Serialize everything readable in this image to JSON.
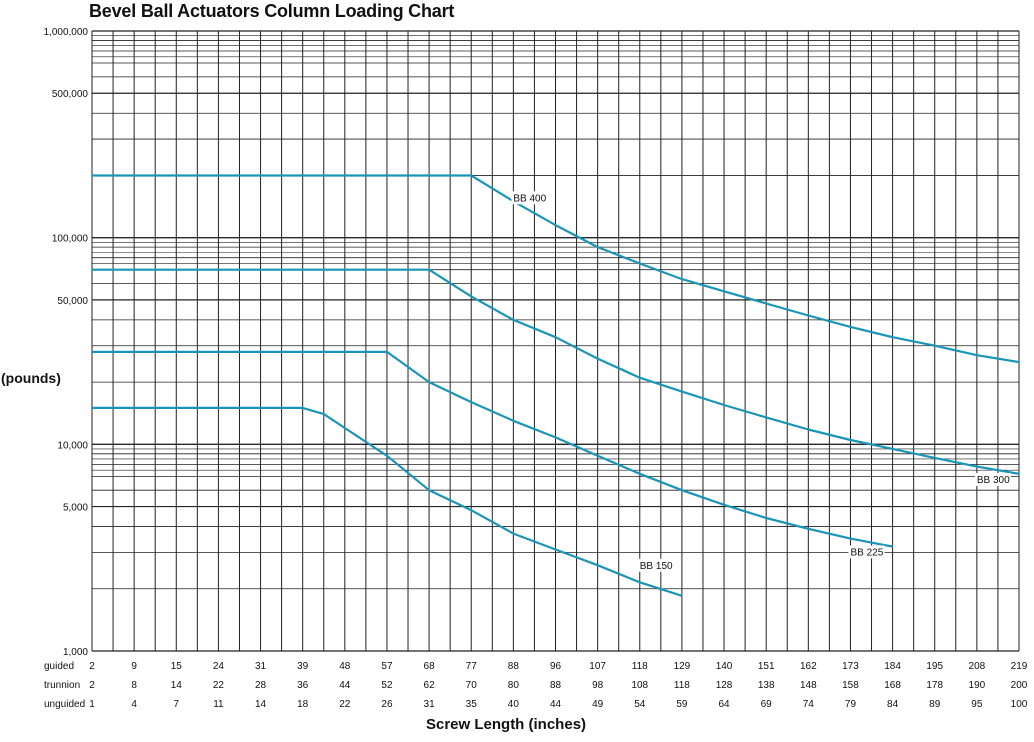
{
  "chart_data": {
    "type": "line",
    "title": "Bevel Ball Actuators Column Loading Chart",
    "ylabel": "(pounds)",
    "xlabel": "Screw Length (inches)",
    "yscale": "log",
    "ylim": [
      1000,
      1000000
    ],
    "ytick_labels": [
      "1,000,000",
      "500,000",
      "100,000",
      "50,000",
      "10,000",
      "5,000",
      "1,000"
    ],
    "ytick_values": [
      1000000,
      500000,
      100000,
      50000,
      10000,
      5000,
      1000
    ],
    "grid": true,
    "x_rows": [
      {
        "name": "guided",
        "labels": [
          "2",
          "9",
          "15",
          "24",
          "31",
          "39",
          "48",
          "57",
          "68",
          "77",
          "88",
          "96",
          "107",
          "118",
          "129",
          "140",
          "151",
          "162",
          "173",
          "184",
          "195",
          "208",
          "219"
        ]
      },
      {
        "name": "trunnion",
        "labels": [
          "2",
          "8",
          "14",
          "22",
          "28",
          "36",
          "44",
          "52",
          "62",
          "70",
          "80",
          "88",
          "98",
          "108",
          "118",
          "128",
          "138",
          "148",
          "158",
          "168",
          "178",
          "190",
          "200"
        ]
      },
      {
        "name": "unguided",
        "labels": [
          "1",
          "4",
          "7",
          "11",
          "14",
          "18",
          "22",
          "26",
          "31",
          "35",
          "40",
          "44",
          "49",
          "54",
          "59",
          "64",
          "69",
          "74",
          "79",
          "84",
          "89",
          "95",
          "100"
        ]
      }
    ],
    "x_reference_row": "unguided",
    "series": [
      {
        "name": "BB 400",
        "color": "#1a95b8",
        "points": [
          [
            1,
            200000
          ],
          [
            35,
            200000
          ],
          [
            40,
            150000
          ],
          [
            44,
            115000
          ],
          [
            49,
            90000
          ],
          [
            54,
            75000
          ],
          [
            59,
            63000
          ],
          [
            64,
            55000
          ],
          [
            69,
            48000
          ],
          [
            74,
            42000
          ],
          [
            79,
            37000
          ],
          [
            84,
            33000
          ],
          [
            89,
            30000
          ],
          [
            95,
            27000
          ],
          [
            100,
            25000
          ]
        ]
      },
      {
        "name": "BB 300",
        "color": "#1a95b8",
        "points": [
          [
            1,
            70000
          ],
          [
            31,
            70000
          ],
          [
            35,
            52000
          ],
          [
            40,
            40000
          ],
          [
            44,
            33000
          ],
          [
            49,
            26000
          ],
          [
            54,
            21000
          ],
          [
            59,
            18000
          ],
          [
            64,
            15500
          ],
          [
            69,
            13500
          ],
          [
            74,
            11800
          ],
          [
            79,
            10500
          ],
          [
            84,
            9500
          ],
          [
            89,
            8600
          ],
          [
            95,
            7800
          ],
          [
            100,
            7200
          ]
        ]
      },
      {
        "name": "BB 225",
        "color": "#1a95b8",
        "points": [
          [
            1,
            28000
          ],
          [
            26,
            28000
          ],
          [
            31,
            20000
          ],
          [
            35,
            16000
          ],
          [
            40,
            13000
          ],
          [
            44,
            10800
          ],
          [
            49,
            8800
          ],
          [
            54,
            7200
          ],
          [
            59,
            6000
          ],
          [
            64,
            5100
          ],
          [
            69,
            4400
          ],
          [
            74,
            3900
          ],
          [
            79,
            3500
          ],
          [
            84,
            3200
          ]
        ]
      },
      {
        "name": "BB 150",
        "color": "#1a95b8",
        "points": [
          [
            1,
            15000
          ],
          [
            18,
            15000
          ],
          [
            20,
            14000
          ],
          [
            22,
            12000
          ],
          [
            26,
            8800
          ],
          [
            31,
            6000
          ],
          [
            35,
            4800
          ],
          [
            40,
            3700
          ],
          [
            44,
            3100
          ],
          [
            49,
            2600
          ],
          [
            54,
            2150
          ],
          [
            59,
            1850
          ]
        ]
      }
    ],
    "annotations": [
      {
        "text": "BB 400",
        "x": 40,
        "y": 150000
      },
      {
        "text": "BB 300",
        "x": 95,
        "y": 6500
      },
      {
        "text": "BB 225",
        "x": 79,
        "y": 2900
      },
      {
        "text": "BB 150",
        "x": 54,
        "y": 2500
      }
    ]
  }
}
